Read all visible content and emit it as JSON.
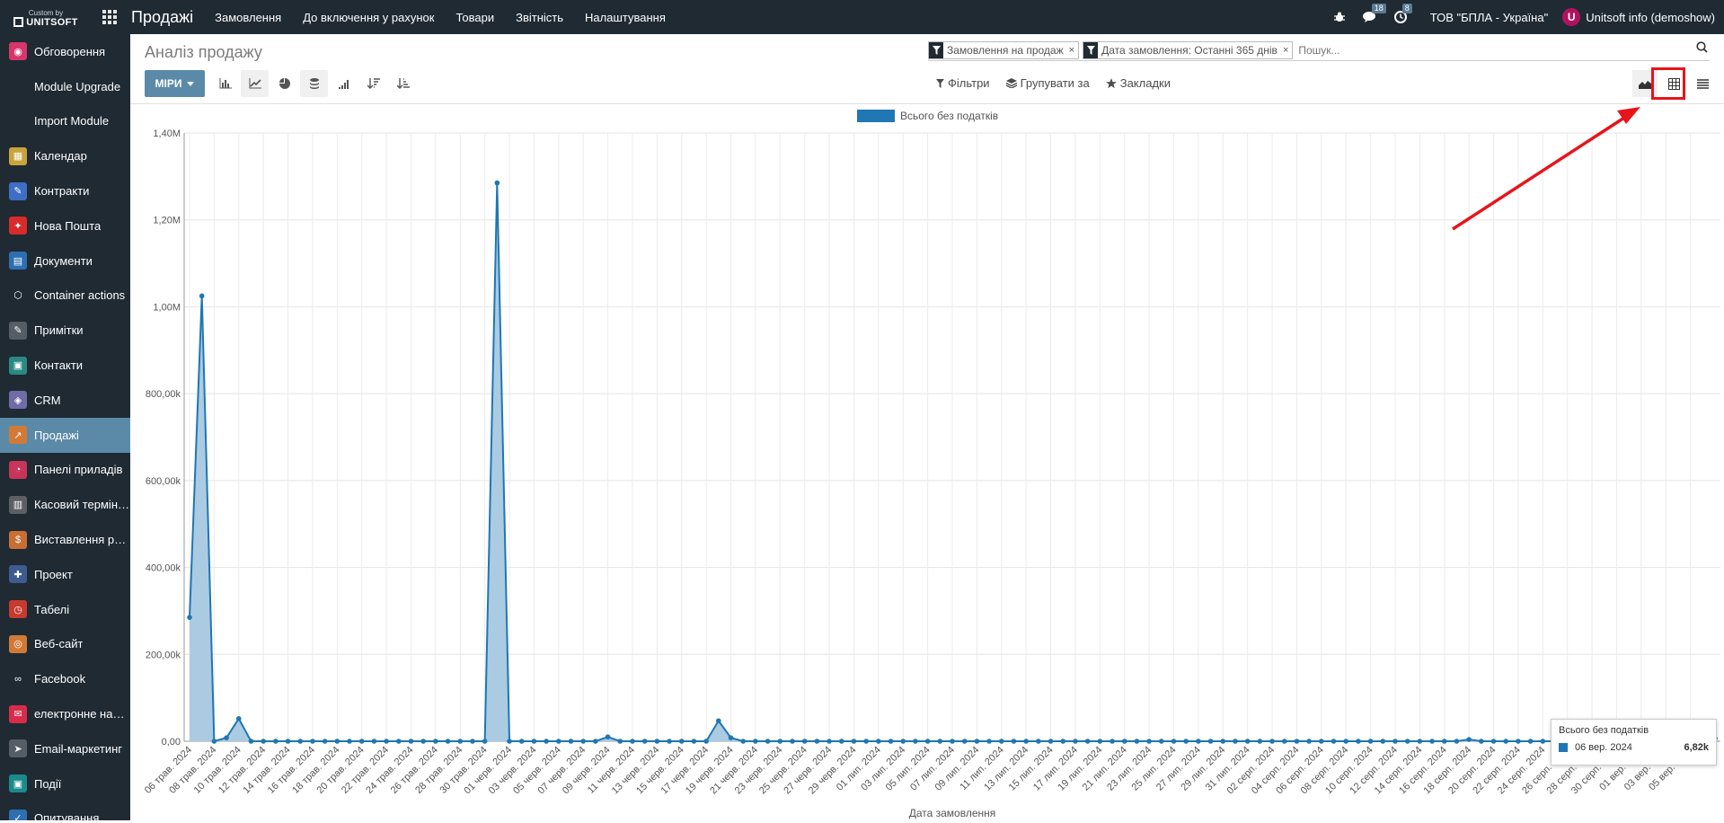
{
  "navbar": {
    "brand_top": "Custom by",
    "brand_main": "UNITSOFT",
    "app_title": "Продажі",
    "menu": [
      "Замовлення",
      "До включення у рахунок",
      "Товари",
      "Звітність",
      "Налаштування"
    ],
    "messages_count": "18",
    "activities_count": "8",
    "company": "ТОВ \"БПЛА - Україна\"",
    "user_initial": "U",
    "user_name": "Unitsoft info (demoshow)"
  },
  "sidebar": {
    "items": [
      {
        "label": "Обговорення",
        "icon": "chat-icon",
        "color": "#d6366b",
        "glyph": "◉"
      },
      {
        "label": "Module Upgrade",
        "icon": "",
        "color": "",
        "glyph": ""
      },
      {
        "label": "Import Module",
        "icon": "",
        "color": "",
        "glyph": ""
      },
      {
        "label": "Календар",
        "icon": "calendar-icon",
        "color": "#c9a43b",
        "glyph": "▦"
      },
      {
        "label": "Контракти",
        "icon": "contract-icon",
        "color": "#3f6ec7",
        "glyph": "✎"
      },
      {
        "label": "Нова Пошта",
        "icon": "nova-poshta-icon",
        "color": "#d92b2b",
        "glyph": "✦"
      },
      {
        "label": "Документи",
        "icon": "documents-icon",
        "color": "#2d6fb0",
        "glyph": "▤"
      },
      {
        "label": "Container actions",
        "icon": "container-icon",
        "color": "#1f2a33",
        "glyph": "⬡"
      },
      {
        "label": "Примітки",
        "icon": "notes-icon",
        "color": "#555d66",
        "glyph": "✎"
      },
      {
        "label": "Контакти",
        "icon": "contacts-icon",
        "color": "#2a8a83",
        "glyph": "▣"
      },
      {
        "label": "CRM",
        "icon": "crm-icon",
        "color": "#6f6ca6",
        "glyph": "◈"
      },
      {
        "label": "Продажі",
        "icon": "sales-icon",
        "color": "#d27a35",
        "glyph": "↗",
        "active": true
      },
      {
        "label": "Панелі приладів",
        "icon": "dashboard-icon",
        "color": "#c9345b",
        "glyph": "◔"
      },
      {
        "label": "Касовий термін…",
        "icon": "pos-icon",
        "color": "#5c5f63",
        "glyph": "▥"
      },
      {
        "label": "Виставлення ра…",
        "icon": "invoicing-icon",
        "color": "#c76f35",
        "glyph": "$"
      },
      {
        "label": "Проект",
        "icon": "project-icon",
        "color": "#3d5b8f",
        "glyph": "✚"
      },
      {
        "label": "Табелі",
        "icon": "timesheet-icon",
        "color": "#c73a2e",
        "glyph": "◷"
      },
      {
        "label": "Веб-сайт",
        "icon": "website-icon",
        "color": "#d27a35",
        "glyph": "◎"
      },
      {
        "label": "Facebook",
        "icon": "facebook-icon",
        "color": "#1f2a33",
        "glyph": "∞"
      },
      {
        "label": "електронне на…",
        "icon": "email-icon",
        "color": "#d92b4a",
        "glyph": "✉"
      },
      {
        "label": "Email-маркетинг",
        "icon": "email-marketing-icon",
        "color": "#555d66",
        "glyph": "➤"
      },
      {
        "label": "Події",
        "icon": "events-icon",
        "color": "#1b8a8a",
        "glyph": "▣"
      },
      {
        "label": "Опитування",
        "icon": "survey-icon",
        "color": "#2d6fb0",
        "glyph": "✓"
      }
    ]
  },
  "control": {
    "breadcrumb": "Аналіз продажу",
    "facet1": "Замовлення на продаж",
    "facet2": "Дата замовлення: Останні 365 днів",
    "search_placeholder": "Пошук...",
    "measures_label": "МІРИ",
    "filters_label": "Фільтри",
    "groupby_label": "Групувати за",
    "favorites_label": "Закладки"
  },
  "tooltip": {
    "title": "Всього без податків",
    "date": "06 вер. 2024",
    "value": "6,82k"
  },
  "chart_data": {
    "type": "area",
    "title": "",
    "legend": "Всього без податків",
    "legend_position": "top-center",
    "xlabel": "Дата замовлення",
    "ylabel": "",
    "ylim": [
      0,
      1400000
    ],
    "yticks": [
      "0,00",
      "200,00k",
      "400,00k",
      "600,00k",
      "800,00k",
      "1,00M",
      "1,20M",
      "1,40M"
    ],
    "grid": true,
    "color": "#1f77b4",
    "fill": "#a6c8e0",
    "x_labels": [
      "06 трав. 2024",
      "08 трав. 2024",
      "10 трав. 2024",
      "12 трав. 2024",
      "14 трав. 2024",
      "16 трав. 2024",
      "18 трав. 2024",
      "20 трав. 2024",
      "22 трав. 2024",
      "24 трав. 2024",
      "26 трав. 2024",
      "28 трав. 2024",
      "30 трав. 2024",
      "01 черв. 2024",
      "03 черв. 2024",
      "05 черв. 2024",
      "07 черв. 2024",
      "09 черв. 2024",
      "11 черв. 2024",
      "13 черв. 2024",
      "15 черв. 2024",
      "17 черв. 2024",
      "19 черв. 2024",
      "21 черв. 2024",
      "23 черв. 2024",
      "25 черв. 2024",
      "27 черв. 2024",
      "29 черв. 2024",
      "01 лип. 2024",
      "03 лип. 2024",
      "05 лип. 2024",
      "07 лип. 2024",
      "09 лип. 2024",
      "11 лип. 2024",
      "13 лип. 2024",
      "15 лип. 2024",
      "17 лип. 2024",
      "19 лип. 2024",
      "21 лип. 2024",
      "23 лип. 2024",
      "25 лип. 2024",
      "27 лип. 2024",
      "29 лип. 2024",
      "31 лип. 2024",
      "02 серп. 2024",
      "04 серп. 2024",
      "06 серп. 2024",
      "08 серп. 2024",
      "10 серп. 2024",
      "12 серп. 2024",
      "14 серп. 2024",
      "16 серп. 2024",
      "18 серп. 2024",
      "20 серп. 2024",
      "22 серп. 2024",
      "24 серп. 2024",
      "26 серп. 2024",
      "28 серп. 2024",
      "30 серп. 2024",
      "01 вер. 2024",
      "03 вер. 2024",
      "05 вер. 2024"
    ],
    "point_count": 125,
    "values": [
      285000,
      1025000,
      0,
      8000,
      52000,
      0,
      0,
      0,
      0,
      0,
      0,
      0,
      0,
      0,
      0,
      0,
      0,
      0,
      0,
      0,
      0,
      0,
      0,
      0,
      0,
      1285000,
      0,
      0,
      0,
      0,
      0,
      0,
      0,
      0,
      10000,
      0,
      0,
      0,
      0,
      0,
      0,
      0,
      0,
      47000,
      8000,
      0,
      0,
      0,
      0,
      0,
      0,
      0,
      0,
      0,
      0,
      0,
      0,
      0,
      0,
      0,
      0,
      0,
      0,
      0,
      0,
      0,
      0,
      0,
      0,
      0,
      0,
      0,
      0,
      0,
      0,
      0,
      0,
      0,
      0,
      0,
      0,
      0,
      0,
      0,
      0,
      0,
      0,
      0,
      0,
      0,
      0,
      0,
      0,
      0,
      0,
      0,
      0,
      0,
      0,
      0,
      0,
      0,
      0,
      0,
      4000,
      0,
      0,
      0,
      0,
      0,
      0,
      0,
      0,
      0,
      0,
      0,
      0,
      0,
      0,
      0,
      0,
      0,
      0,
      0,
      6820
    ]
  }
}
